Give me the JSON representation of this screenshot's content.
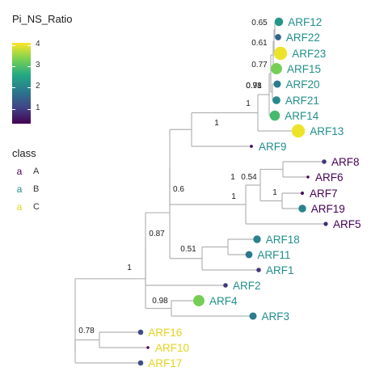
{
  "legend": {
    "color_title": "Pi_NS_Ratio",
    "colorbar_ticks": [
      "4",
      "3",
      "2",
      "1"
    ],
    "colorbar_values": [
      4,
      3,
      2,
      1
    ],
    "colorbar_range": [
      0.3,
      4.1
    ],
    "colorbar_colors": [
      "#fde725",
      "#7ad151",
      "#22a884",
      "#2a788e",
      "#414487",
      "#440154"
    ],
    "class_title": "class",
    "class_key_glyph": "a",
    "classes": [
      {
        "label": "A",
        "color": "#440154"
      },
      {
        "label": "B",
        "color": "#21908c"
      },
      {
        "label": "C",
        "color": "#e3d41f"
      }
    ]
  },
  "tree": {
    "branch_color": "#b3b3b3",
    "tips": [
      {
        "label": "ARF12",
        "class": "B",
        "value": 2.3
      },
      {
        "label": "ARF22",
        "class": "B",
        "value": 1.5
      },
      {
        "label": "ARF23",
        "class": "B",
        "value": 4.0
      },
      {
        "label": "ARF15",
        "class": "B",
        "value": 3.3
      },
      {
        "label": "ARF20",
        "class": "B",
        "value": 1.9
      },
      {
        "label": "ARF21",
        "class": "B",
        "value": 2.1
      },
      {
        "label": "ARF14",
        "class": "B",
        "value": 2.9
      },
      {
        "label": "ARF13",
        "class": "B",
        "value": 4.0
      },
      {
        "label": "ARF9",
        "class": "B",
        "value": 0.4
      },
      {
        "label": "ARF8",
        "class": "A",
        "value": 0.9
      },
      {
        "label": "ARF6",
        "class": "A",
        "value": 0.3
      },
      {
        "label": "ARF7",
        "class": "A",
        "value": 0.5
      },
      {
        "label": "ARF19",
        "class": "A",
        "value": 2.0
      },
      {
        "label": "ARF5",
        "class": "A",
        "value": 0.8
      },
      {
        "label": "ARF18",
        "class": "B",
        "value": 2.0
      },
      {
        "label": "ARF11",
        "class": "B",
        "value": 1.8
      },
      {
        "label": "ARF1",
        "class": "B",
        "value": 0.9
      },
      {
        "label": "ARF2",
        "class": "B",
        "value": 0.9
      },
      {
        "label": "ARF4",
        "class": "B",
        "value": 3.3
      },
      {
        "label": "ARF3",
        "class": "B",
        "value": 1.9
      },
      {
        "label": "ARF16",
        "class": "C",
        "value": 1.2
      },
      {
        "label": "ARF10",
        "class": "C",
        "value": 0.3
      },
      {
        "label": "ARF17",
        "class": "C",
        "value": 1.2
      }
    ],
    "support_values": [
      "0.65",
      "0.61",
      "0.77",
      "0.71",
      "0.98",
      "1",
      "1",
      "1",
      "0.54",
      "1",
      "0.6",
      "1",
      "0.51",
      "0.87",
      "0.98",
      "1",
      "0.78"
    ]
  }
}
